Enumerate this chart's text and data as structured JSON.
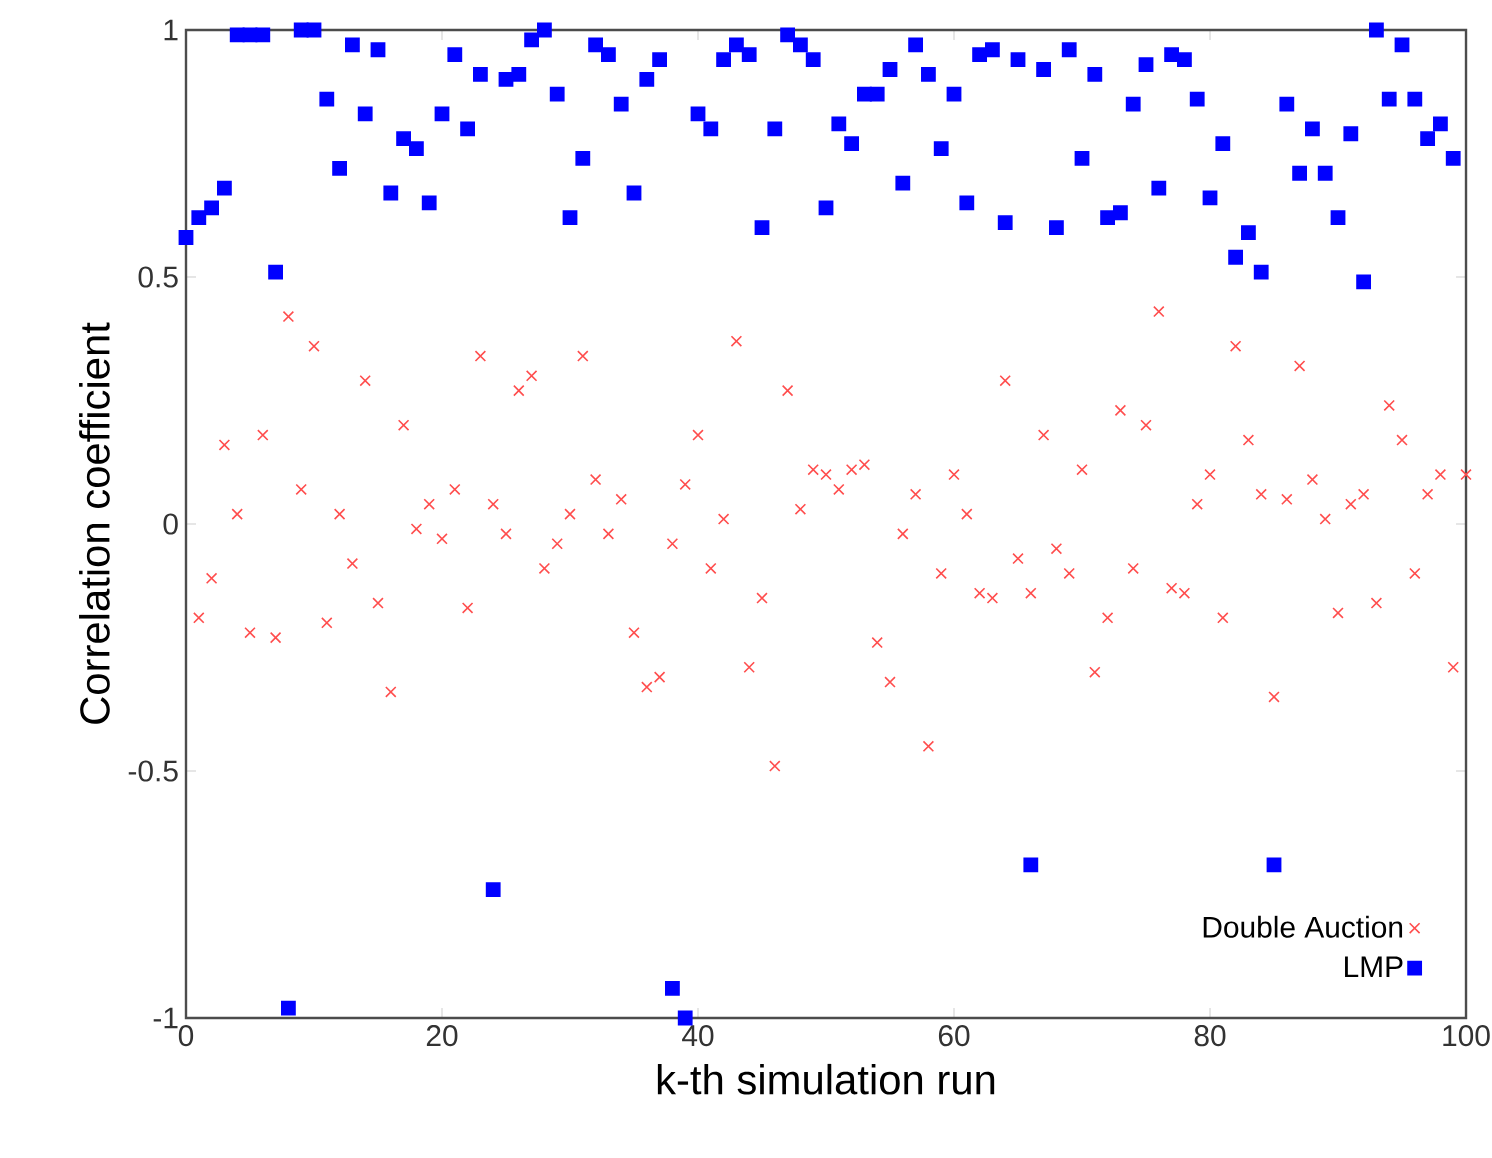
{
  "chart_data": {
    "type": "scatter",
    "xlabel": "k-th simulation run",
    "ylabel": "Correlation coefficient",
    "xlim": [
      0,
      100
    ],
    "ylim": [
      -1,
      1
    ],
    "xticks": [
      0,
      20,
      40,
      60,
      80,
      100
    ],
    "yticks": [
      -1,
      -0.5,
      0,
      0.5,
      1
    ],
    "legend": "bottom right",
    "series": [
      {
        "name": "Double Auction",
        "color": "#ff4d4d",
        "marker": "cross",
        "x": [
          1,
          2,
          3,
          4,
          5,
          6,
          7,
          8,
          9,
          10,
          11,
          12,
          13,
          14,
          15,
          16,
          17,
          18,
          19,
          20,
          21,
          22,
          23,
          24,
          25,
          26,
          27,
          28,
          29,
          30,
          31,
          32,
          33,
          34,
          35,
          36,
          37,
          38,
          39,
          40,
          41,
          42,
          43,
          44,
          45,
          46,
          47,
          48,
          49,
          50,
          51,
          52,
          53,
          54,
          55,
          56,
          57,
          58,
          59,
          60,
          61,
          62,
          63,
          64,
          65,
          66,
          67,
          68,
          69,
          70,
          71,
          72,
          73,
          74,
          75,
          76,
          77,
          78,
          79,
          80,
          81,
          82,
          83,
          84,
          85,
          86,
          87,
          88,
          89,
          90,
          91,
          92,
          93,
          94,
          95,
          96,
          97,
          98,
          99,
          100
        ],
        "values": [
          -0.19,
          -0.11,
          0.16,
          0.02,
          -0.22,
          0.18,
          -0.23,
          0.42,
          0.07,
          0.36,
          -0.2,
          0.02,
          -0.08,
          0.29,
          -0.16,
          -0.34,
          0.2,
          -0.01,
          0.04,
          -0.03,
          0.07,
          -0.17,
          0.34,
          0.04,
          -0.02,
          0.27,
          0.3,
          -0.09,
          -0.04,
          0.02,
          0.34,
          0.09,
          -0.02,
          0.05,
          -0.22,
          -0.33,
          -0.31,
          -0.04,
          0.08,
          0.18,
          -0.09,
          0.01,
          0.37,
          -0.29,
          -0.15,
          -0.49,
          0.27,
          0.03,
          0.11,
          0.1,
          0.07,
          0.11,
          0.12,
          -0.24,
          -0.32,
          -0.02,
          0.06,
          -0.45,
          -0.1,
          0.1,
          0.02,
          -0.14,
          -0.15,
          0.29,
          -0.07,
          -0.14,
          0.18,
          -0.05,
          -0.1,
          0.11,
          -0.3,
          -0.19,
          0.23,
          -0.09,
          0.2,
          0.43,
          -0.13,
          -0.14,
          0.04,
          0.1,
          -0.19,
          0.36,
          0.17,
          0.06,
          -0.35,
          0.05,
          0.32,
          0.09,
          0.01,
          -0.18,
          0.04,
          0.06,
          -0.16,
          0.24,
          0.17,
          -0.1,
          0.06,
          0.1,
          -0.29,
          0.1
        ]
      },
      {
        "name": "LMP",
        "color": "#0000ff",
        "marker": "square",
        "x": [
          0,
          1,
          2,
          3,
          4,
          5,
          6,
          7,
          8,
          9,
          10,
          11,
          12,
          13,
          14,
          15,
          16,
          17,
          18,
          19,
          20,
          21,
          22,
          23,
          24,
          25,
          26,
          27,
          28,
          29,
          30,
          31,
          32,
          33,
          34,
          35,
          36,
          37,
          38,
          39,
          40,
          41,
          42,
          43,
          44,
          45,
          46,
          47,
          48,
          49,
          50,
          51,
          52,
          53,
          54,
          55,
          56,
          57,
          58,
          59,
          60,
          61,
          62,
          63,
          64,
          65,
          66,
          67,
          68,
          69,
          70,
          71,
          72,
          73,
          74,
          75,
          76,
          77,
          78,
          79,
          80,
          81,
          82,
          83,
          84,
          85,
          86,
          87,
          88,
          89,
          90,
          91,
          92,
          93,
          94,
          95,
          96,
          97,
          98,
          99
        ],
        "values": [
          0.58,
          0.62,
          0.64,
          0.68,
          0.99,
          0.99,
          0.99,
          0.51,
          -0.98,
          1.0,
          1.0,
          0.86,
          0.72,
          0.97,
          0.83,
          0.96,
          0.67,
          0.78,
          0.76,
          0.65,
          0.83,
          0.95,
          0.8,
          0.91,
          -0.74,
          0.9,
          0.91,
          0.98,
          1.0,
          0.87,
          0.62,
          0.74,
          0.97,
          0.95,
          0.85,
          0.67,
          0.9,
          0.94,
          -0.94,
          -1.0,
          0.83,
          0.8,
          0.94,
          0.97,
          0.95,
          0.6,
          0.8,
          0.99,
          0.97,
          0.94,
          0.64,
          0.81,
          0.77,
          0.87,
          0.87,
          0.92,
          0.69,
          0.97,
          0.91,
          0.76,
          0.87,
          0.65,
          0.95,
          0.96,
          0.61,
          0.94,
          -0.69,
          0.92,
          0.6,
          0.96,
          0.74,
          0.91,
          0.62,
          0.63,
          0.85,
          0.93,
          0.68,
          0.95,
          0.94,
          0.86,
          0.66,
          0.77,
          0.54,
          0.59,
          0.51,
          -0.69,
          0.85,
          0.71,
          0.8,
          0.71,
          0.62,
          0.79,
          0.49,
          1.0,
          0.86,
          0.97,
          0.86,
          0.78,
          0.81,
          0.74
        ]
      }
    ]
  }
}
